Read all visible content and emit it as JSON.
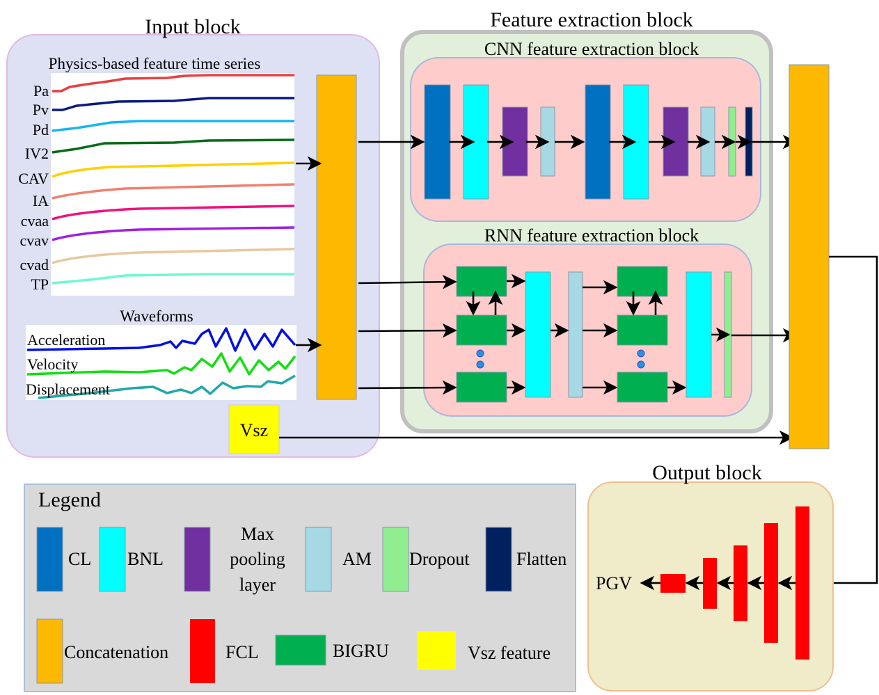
{
  "input_block": {
    "title": "Input block",
    "physics_title": "Physics-based feature time series",
    "features": [
      {
        "label": "Pa",
        "color": "#e84040"
      },
      {
        "label": "Pv",
        "color": "#0a1a80"
      },
      {
        "label": "Pd",
        "color": "#18b4f0"
      },
      {
        "label": "IV2",
        "color": "#0a6a1a"
      },
      {
        "label": "CAV",
        "color": "#ffd000"
      },
      {
        "label": "IA",
        "color": "#f08070"
      },
      {
        "label": "cvaa",
        "color": "#f01080"
      },
      {
        "label": "cvav",
        "color": "#a020e0"
      },
      {
        "label": "cvad",
        "color": "#e8c8a0"
      },
      {
        "label": "TP",
        "color": "#70f8d0"
      }
    ],
    "waveforms_title": "Waveforms",
    "waveforms": [
      {
        "label": "Acceleration",
        "color": "#0010e0"
      },
      {
        "label": "Velocity",
        "color": "#10e010"
      },
      {
        "label": "Displacement",
        "color": "#20a8a8"
      }
    ],
    "vsz_label": "Vsz"
  },
  "feature_block": {
    "title": "Feature extraction block",
    "cnn_title": "CNN feature extraction block",
    "rnn_title": "RNN feature extraction block"
  },
  "output_block": {
    "title": "Output block",
    "output_label": "PGV"
  },
  "legend": {
    "title": "Legend",
    "items": [
      {
        "label": "CL",
        "color": "#0070c0"
      },
      {
        "label": "BNL",
        "color": "#00ffff"
      },
      {
        "label_lines": [
          "Max",
          "pooling",
          "layer"
        ],
        "color": "#7030a0"
      },
      {
        "label": "AM",
        "color": "#a6d9e3"
      },
      {
        "label": "Dropout",
        "color": "#90ee90"
      },
      {
        "label": "Flatten",
        "color": "#002060"
      },
      {
        "label": "Concatenation",
        "color": "#fdb900"
      },
      {
        "label": "FCL",
        "color": "#ff0000"
      },
      {
        "label": "BIGRU",
        "color": "#00b050"
      },
      {
        "label": "Vsz feature",
        "color": "#ffff00"
      }
    ]
  }
}
